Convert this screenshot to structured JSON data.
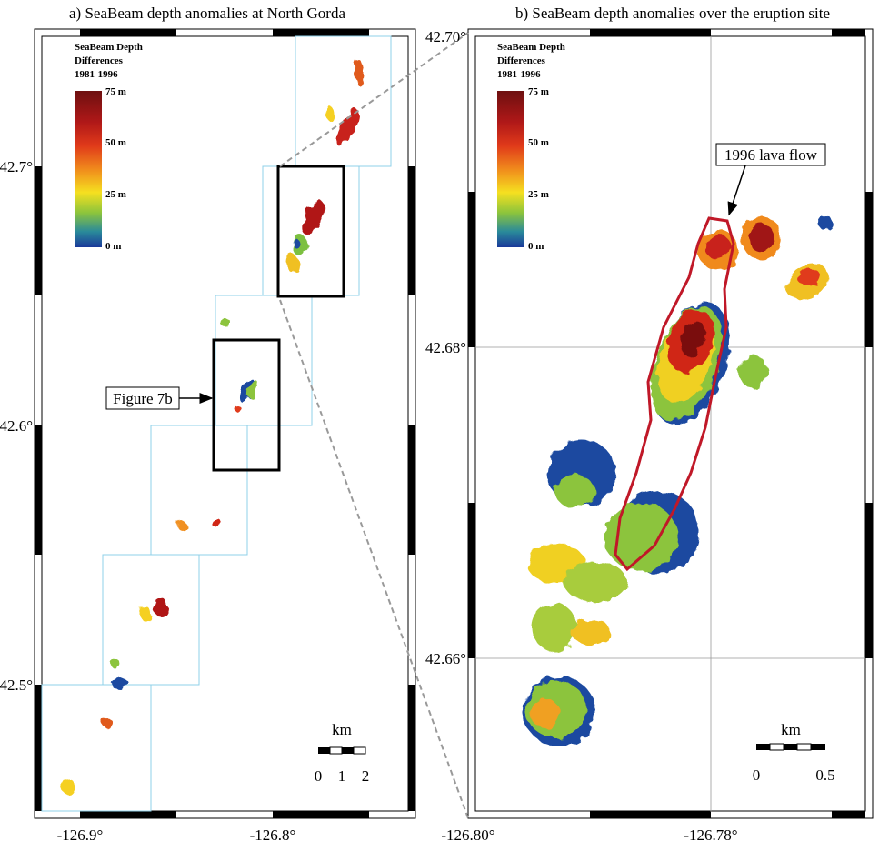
{
  "panel_a": {
    "title": "a) SeaBeam depth anomalies at North Gorda",
    "lat_labels": [
      "42.7°",
      "42.6°",
      "42.5°"
    ],
    "lon_labels": [
      "-126.9°",
      "-126.8°"
    ],
    "colorbar": {
      "title": [
        "SeaBeam Depth",
        "Differences",
        "1981-1996"
      ],
      "labels": [
        "75 m",
        "50 m",
        "25 m",
        "0 m"
      ]
    },
    "scale": {
      "unit": "km",
      "labels": [
        "0",
        "1",
        "2"
      ]
    },
    "annotation": "Figure 7b"
  },
  "panel_b": {
    "title": "b) SeaBeam depth anomalies over the eruption site",
    "lat_labels": [
      "42.70°",
      "42.68°",
      "42.66°"
    ],
    "lon_labels": [
      "-126.80°",
      "-126.78°"
    ],
    "colorbar": {
      "title": [
        "SeaBeam Depth",
        "Differences",
        "1981-1996"
      ],
      "labels": [
        "75 m",
        "50 m",
        "25 m",
        "0 m"
      ]
    },
    "scale": {
      "unit": "km",
      "labels": [
        "0",
        "0.5"
      ]
    },
    "annotation": "1996 lava flow"
  }
}
